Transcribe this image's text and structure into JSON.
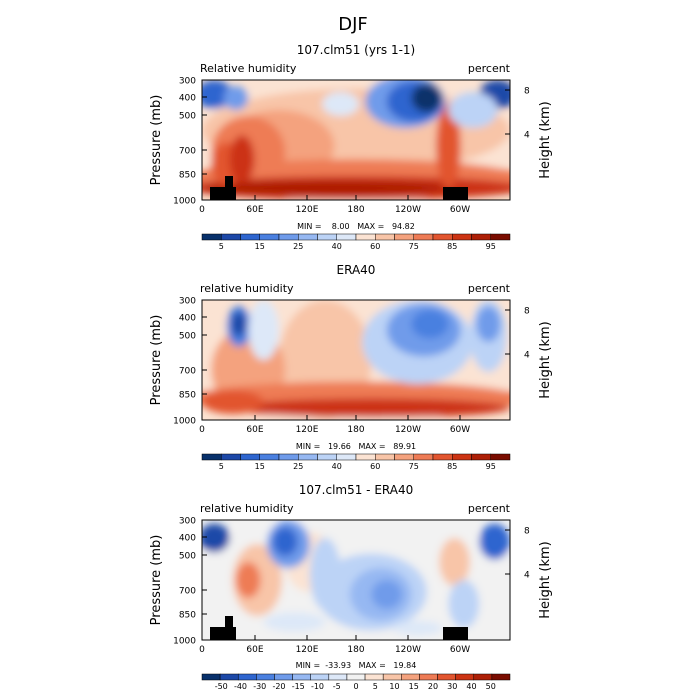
{
  "title": "DJF",
  "colors": {
    "rh_scale": [
      "#08306b",
      "#1c48a8",
      "#2e65cf",
      "#4a80e0",
      "#6f9bea",
      "#96b8f2",
      "#bcd3f6",
      "#dde8f8",
      "#fbe3d3",
      "#f8c5a8",
      "#f4a27e",
      "#ee7b55",
      "#e2552f",
      "#cc3312",
      "#ad1f06",
      "#7a0c00"
    ],
    "diff_scale": [
      "#08306b",
      "#1c48a8",
      "#2e65cf",
      "#4a80e0",
      "#6f9bea",
      "#96b8f2",
      "#bcd3f6",
      "#dde8f8",
      "#f2f2f2",
      "#fbe3d3",
      "#f8c5a8",
      "#f4a27e",
      "#ee7b55",
      "#e2552f",
      "#cc3312",
      "#ad1f06",
      "#7a0c00"
    ],
    "topography": "#000000"
  },
  "chart_data": [
    {
      "type": "heatmap",
      "title": "107.clm51 (yrs 1-1)",
      "left_label": "Relative humidity",
      "right_label": "percent",
      "ylabel": "Pressure (mb)",
      "y2label": "Height (km)",
      "yticks": [
        "300",
        "400",
        "500",
        "700",
        "850",
        "1000"
      ],
      "y2ticks": [
        "8",
        "4"
      ],
      "xticks": [
        "0",
        "60E",
        "120E",
        "180",
        "120W",
        "60W"
      ],
      "min_max": "MIN =    8.00   MAX =   94.82",
      "colorbar_ticks": [
        "5",
        "15",
        "25",
        "40",
        "60",
        "75",
        "85",
        "95"
      ],
      "colorbar_levels": [
        5,
        10,
        15,
        20,
        25,
        30,
        35,
        40,
        50,
        60,
        70,
        75,
        80,
        85,
        90,
        95
      ],
      "topography": true
    },
    {
      "type": "heatmap",
      "title": "ERA40",
      "left_label": "relative humidity",
      "right_label": "percent",
      "ylabel": "Pressure (mb)",
      "y2label": "Height (km)",
      "yticks": [
        "300",
        "400",
        "500",
        "700",
        "850",
        "1000"
      ],
      "y2ticks": [
        "8",
        "4"
      ],
      "xticks": [
        "0",
        "60E",
        "120E",
        "180",
        "120W",
        "60W"
      ],
      "min_max": "MIN =   19.66   MAX =   89.91",
      "colorbar_ticks": [
        "5",
        "15",
        "25",
        "40",
        "60",
        "75",
        "85",
        "95"
      ],
      "colorbar_levels": [
        5,
        10,
        15,
        20,
        25,
        30,
        35,
        40,
        50,
        60,
        70,
        75,
        80,
        85,
        90,
        95
      ],
      "topography": false
    },
    {
      "type": "heatmap",
      "title": "107.clm51 - ERA40",
      "left_label": "relative humidity",
      "right_label": "percent",
      "ylabel": "Pressure (mb)",
      "y2label": "Height (km)",
      "yticks": [
        "300",
        "400",
        "500",
        "700",
        "850",
        "1000"
      ],
      "y2ticks": [
        "8",
        "4"
      ],
      "xticks": [
        "0",
        "60E",
        "120E",
        "180",
        "120W",
        "60W"
      ],
      "min_max": "MIN =  -33.93   MAX =   19.84",
      "colorbar_ticks": [
        "-50",
        "-40",
        "-30",
        "-20",
        "-15",
        "-10",
        "-5",
        "0",
        "5",
        "10",
        "15",
        "20",
        "30",
        "40",
        "50"
      ],
      "colorbar_levels": [
        -50,
        -40,
        -30,
        -20,
        -15,
        -10,
        -5,
        0,
        5,
        10,
        15,
        20,
        30,
        40,
        50
      ],
      "topography": true
    }
  ]
}
